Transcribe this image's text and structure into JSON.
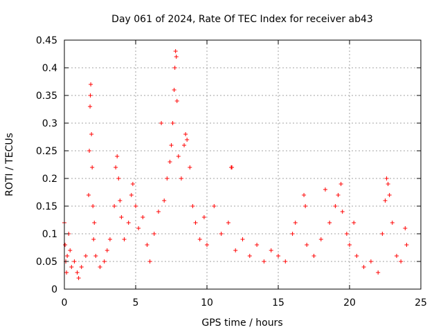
{
  "chart_data": {
    "type": "scatter",
    "title": "Day 061 of 2024, Rate Of TEC Index for receiver ab43",
    "xlabel": "GPS time / hours",
    "ylabel": "ROTI / TECUs",
    "xlim": [
      0,
      25
    ],
    "ylim": [
      0,
      0.45
    ],
    "xticks": [
      0,
      5,
      10,
      15,
      20,
      25
    ],
    "xtick_labels": [
      "0",
      "5",
      "10",
      "15",
      "20",
      "25"
    ],
    "yticks": [
      0,
      0.05,
      0.1,
      0.15,
      0.2,
      0.25,
      0.3,
      0.35,
      0.4,
      0.45
    ],
    "ytick_labels": [
      "0",
      "0.05",
      "0.1",
      "0.15",
      "0.2",
      "0.25",
      "0.3",
      "0.35",
      "0.4",
      "0.45"
    ],
    "grid": true,
    "marker": "plus",
    "marker_color": "#ff0000",
    "series": [
      {
        "name": "ROTI",
        "points": [
          [
            0.0,
            0.12
          ],
          [
            0.05,
            0.08
          ],
          [
            0.1,
            0.05
          ],
          [
            0.15,
            0.03
          ],
          [
            0.2,
            0.06
          ],
          [
            0.3,
            0.1
          ],
          [
            0.4,
            0.07
          ],
          [
            0.5,
            0.04
          ],
          [
            0.7,
            0.05
          ],
          [
            0.9,
            0.03
          ],
          [
            1.0,
            0.02
          ],
          [
            1.2,
            0.04
          ],
          [
            1.5,
            0.06
          ],
          [
            1.7,
            0.17
          ],
          [
            1.75,
            0.25
          ],
          [
            1.8,
            0.33
          ],
          [
            1.82,
            0.35
          ],
          [
            1.85,
            0.37
          ],
          [
            1.9,
            0.28
          ],
          [
            1.95,
            0.22
          ],
          [
            2.0,
            0.15
          ],
          [
            2.05,
            0.09
          ],
          [
            2.1,
            0.12
          ],
          [
            2.2,
            0.06
          ],
          [
            2.5,
            0.04
          ],
          [
            2.8,
            0.05
          ],
          [
            3.0,
            0.07
          ],
          [
            3.2,
            0.09
          ],
          [
            3.5,
            0.15
          ],
          [
            3.6,
            0.22
          ],
          [
            3.7,
            0.24
          ],
          [
            3.8,
            0.2
          ],
          [
            3.9,
            0.16
          ],
          [
            4.0,
            0.13
          ],
          [
            4.2,
            0.09
          ],
          [
            4.5,
            0.12
          ],
          [
            4.7,
            0.17
          ],
          [
            4.8,
            0.19
          ],
          [
            5.0,
            0.15
          ],
          [
            5.2,
            0.11
          ],
          [
            5.5,
            0.13
          ],
          [
            5.8,
            0.08
          ],
          [
            6.0,
            0.05
          ],
          [
            6.3,
            0.1
          ],
          [
            6.6,
            0.14
          ],
          [
            6.8,
            0.3
          ],
          [
            7.0,
            0.16
          ],
          [
            7.2,
            0.2
          ],
          [
            7.4,
            0.23
          ],
          [
            7.5,
            0.26
          ],
          [
            7.6,
            0.3
          ],
          [
            7.7,
            0.36
          ],
          [
            7.75,
            0.4
          ],
          [
            7.8,
            0.43
          ],
          [
            7.85,
            0.42
          ],
          [
            7.9,
            0.34
          ],
          [
            8.0,
            0.24
          ],
          [
            8.2,
            0.2
          ],
          [
            8.4,
            0.26
          ],
          [
            8.5,
            0.28
          ],
          [
            8.6,
            0.27
          ],
          [
            8.8,
            0.22
          ],
          [
            9.0,
            0.15
          ],
          [
            9.2,
            0.12
          ],
          [
            9.5,
            0.09
          ],
          [
            9.8,
            0.13
          ],
          [
            10.0,
            0.08
          ],
          [
            10.5,
            0.15
          ],
          [
            11.0,
            0.1
          ],
          [
            11.5,
            0.12
          ],
          [
            11.7,
            0.22
          ],
          [
            11.75,
            0.22
          ],
          [
            12.0,
            0.07
          ],
          [
            12.5,
            0.09
          ],
          [
            13.0,
            0.06
          ],
          [
            13.5,
            0.08
          ],
          [
            14.0,
            0.05
          ],
          [
            14.5,
            0.07
          ],
          [
            15.0,
            0.06
          ],
          [
            15.5,
            0.05
          ],
          [
            16.0,
            0.1
          ],
          [
            16.2,
            0.12
          ],
          [
            16.8,
            0.17
          ],
          [
            16.9,
            0.15
          ],
          [
            17.0,
            0.08
          ],
          [
            17.5,
            0.06
          ],
          [
            18.0,
            0.09
          ],
          [
            18.3,
            0.18
          ],
          [
            18.6,
            0.12
          ],
          [
            19.0,
            0.15
          ],
          [
            19.2,
            0.17
          ],
          [
            19.4,
            0.19
          ],
          [
            19.5,
            0.14
          ],
          [
            19.8,
            0.1
          ],
          [
            20.0,
            0.08
          ],
          [
            20.3,
            0.12
          ],
          [
            20.5,
            0.06
          ],
          [
            21.0,
            0.04
          ],
          [
            21.5,
            0.05
          ],
          [
            22.0,
            0.03
          ],
          [
            22.3,
            0.1
          ],
          [
            22.5,
            0.16
          ],
          [
            22.6,
            0.2
          ],
          [
            22.7,
            0.19
          ],
          [
            22.8,
            0.17
          ],
          [
            23.0,
            0.12
          ],
          [
            23.3,
            0.06
          ],
          [
            23.6,
            0.05
          ],
          [
            23.9,
            0.11
          ],
          [
            24.0,
            0.08
          ]
        ]
      }
    ]
  }
}
